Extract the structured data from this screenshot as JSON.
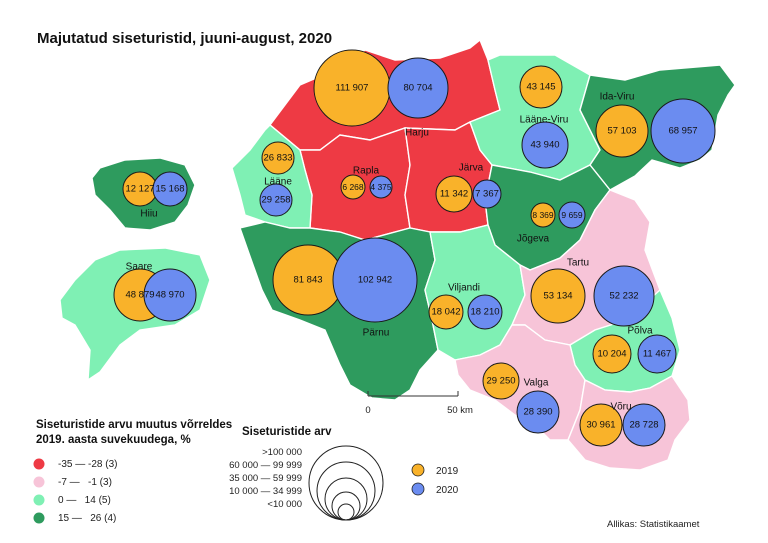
{
  "title": "Majutatud siseturistid, juuni-august, 2020",
  "source": "Allikas: Statistikaamet",
  "colors": {
    "class1": "#ee3a44",
    "class2": "#f7c4d8",
    "class3": "#7ff0b4",
    "class4": "#2e9b5e",
    "y2019": "#f9b22a",
    "y2020": "#6b8cf0",
    "border": "#ffffff"
  },
  "legend": {
    "title_line1": "Siseturistide arvu muutus võrreldes",
    "title_line2": "2019. aasta suvekuudega, %",
    "items": [
      {
        "label": "-35 — -28 (3)",
        "color_key": "class1"
      },
      {
        "label": "-7 —   -1 (3)",
        "color_key": "class2"
      },
      {
        "label": "0 —   14 (5)",
        "color_key": "class3"
      },
      {
        "label": "15 —   26 (4)",
        "color_key": "class4"
      }
    ]
  },
  "size_legend": {
    "title": "Siseturistide arv",
    "classes": [
      ">100 000",
      "60 000 — 99 999",
      "35 000 — 59 999",
      "10 000 — 34 999",
      "<10 000"
    ]
  },
  "year_legend": [
    {
      "label": "2019",
      "color_key": "y2019"
    },
    {
      "label": "2020",
      "color_key": "y2020"
    }
  ],
  "scale": {
    "start": "0",
    "end": "50 km"
  },
  "counties": [
    {
      "name": "Harju",
      "class": "class1",
      "v2019": "111 907",
      "v2020": "80 704"
    },
    {
      "name": "Rapla",
      "class": "class1",
      "v2019": "6 268",
      "v2020": "4 375"
    },
    {
      "name": "Järva",
      "class": "class1",
      "v2019": "11 342",
      "v2020": "7 367"
    },
    {
      "name": "Lääne-Viru",
      "class": "class3",
      "v2019": "43 145",
      "v2020": "43 940"
    },
    {
      "name": "Ida-Viru",
      "class": "class4",
      "v2019": "57 103",
      "v2020": "68 957"
    },
    {
      "name": "Lääne",
      "class": "class3",
      "v2019": "26 833",
      "v2020": "29 258"
    },
    {
      "name": "Hiiu",
      "class": "class4",
      "v2019": "12 127",
      "v2020": "15 168"
    },
    {
      "name": "Jõgeva",
      "class": "class4",
      "v2019": "8 369",
      "v2020": "9 659"
    },
    {
      "name": "Saare",
      "class": "class3",
      "v2019": "48 879",
      "v2020": "48 970"
    },
    {
      "name": "Pärnu",
      "class": "class4",
      "v2019": "81 843",
      "v2020": "102 942"
    },
    {
      "name": "Viljandi",
      "class": "class3",
      "v2019": "18 042",
      "v2020": "18 210"
    },
    {
      "name": "Tartu",
      "class": "class2",
      "v2019": "53 134",
      "v2020": "52 232"
    },
    {
      "name": "Põlva",
      "class": "class3",
      "v2019": "10 204",
      "v2020": "11 467"
    },
    {
      "name": "Valga",
      "class": "class2",
      "v2019": "29 250",
      "v2020": "28 390"
    },
    {
      "name": "Võru",
      "class": "class2",
      "v2019": "30 961",
      "v2020": "28 728"
    }
  ]
}
